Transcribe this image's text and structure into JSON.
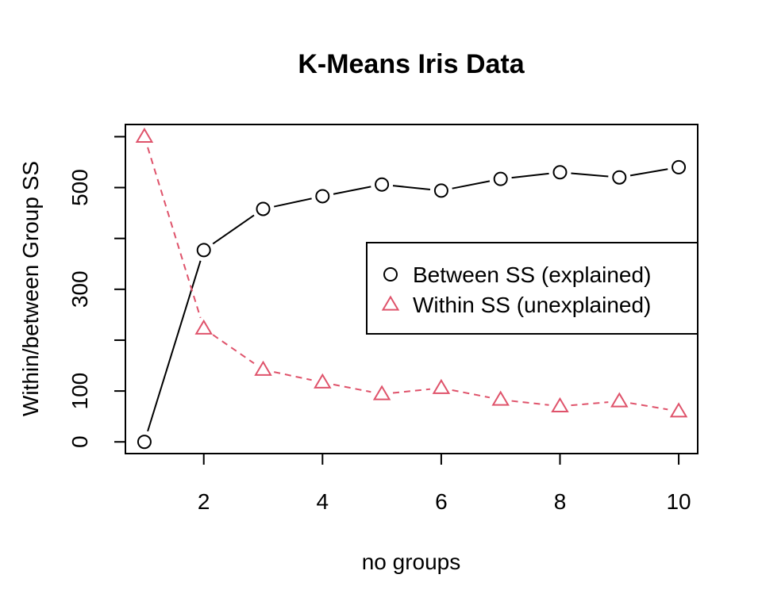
{
  "chart_data": {
    "type": "line",
    "title": "K-Means Iris Data",
    "xlabel": "no groups",
    "ylabel": "Within/between Group SS",
    "xlim": [
      0.68,
      10.32
    ],
    "ylim": [
      -23,
      624
    ],
    "x_ticks": [
      2,
      4,
      6,
      8,
      10
    ],
    "y_ticks": [
      0,
      100,
      200,
      300,
      400,
      500,
      600
    ],
    "y_tick_labels": [
      "0",
      "100",
      "",
      "300",
      "",
      "500",
      ""
    ],
    "grid": false,
    "legend_position": "right",
    "series": [
      {
        "name": "Between SS (explained)",
        "color": "#000000",
        "marker": "circle",
        "line_style": "solid",
        "x": [
          1,
          2,
          3,
          4,
          5,
          6,
          7,
          8,
          9,
          10
        ],
        "values": [
          0,
          377,
          458,
          483,
          506,
          494,
          517,
          530,
          520,
          540
        ]
      },
      {
        "name": "Within SS (unexplained)",
        "color": "#DF536B",
        "marker": "triangle",
        "line_style": "dashed",
        "x": [
          1,
          2,
          3,
          4,
          5,
          6,
          7,
          8,
          9,
          10
        ],
        "values": [
          600,
          223,
          142,
          117,
          94,
          106,
          83,
          70,
          80,
          60
        ]
      }
    ]
  }
}
